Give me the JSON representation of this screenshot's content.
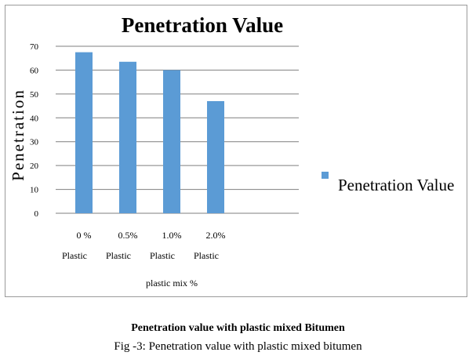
{
  "chart_data": {
    "type": "bar",
    "title": "Penetration Value",
    "ylabel": "Penetration",
    "xlabel": "plastic mix %",
    "categories": [
      [
        "0  %",
        "Plastic"
      ],
      [
        "0.5%",
        "Plastic"
      ],
      [
        "1.0%",
        "Plastic"
      ],
      [
        "2.0%",
        "Plastic"
      ]
    ],
    "series": [
      {
        "name": "Penetration Value",
        "values": [
          67.5,
          63.5,
          60,
          47
        ],
        "color": "#5b9bd5"
      }
    ],
    "ylim": [
      0,
      70
    ],
    "yticks": [
      0,
      10,
      20,
      30,
      40,
      50,
      60,
      70
    ],
    "grid": true,
    "legend": "right"
  },
  "figure": {
    "title": "Penetration value with plastic mixed Bitumen",
    "caption": "Fig -3: Penetration value with plastic mixed bitumen"
  }
}
